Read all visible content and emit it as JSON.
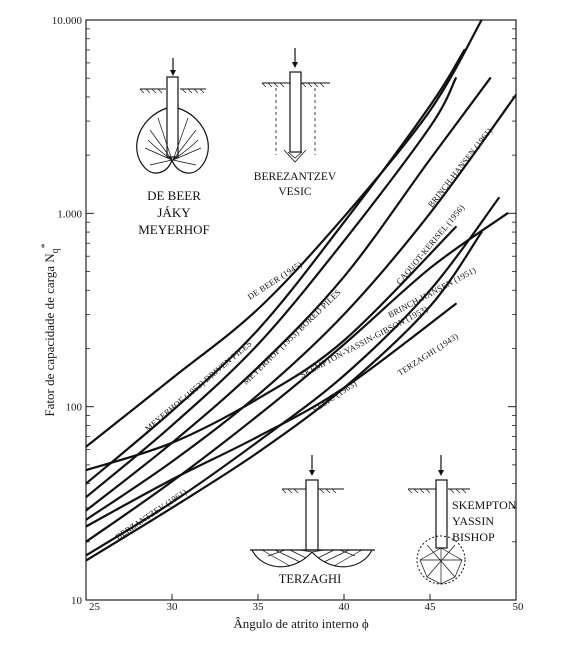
{
  "chart_data": {
    "type": "line",
    "title": "",
    "xlabel": "Ângulo de atrito interno ϕ",
    "ylabel": "Fator de capacidade de carga N",
    "ylabel_sub": "q",
    "ylabel_sup": "*",
    "xlim": [
      25,
      50
    ],
    "ylim": [
      10,
      10000
    ],
    "yscale": "log",
    "grid": false,
    "x_ticks": [
      "25",
      "30",
      "35",
      "40",
      "45",
      "50"
    ],
    "y_ticks": [
      {
        "value": 10,
        "label": "10"
      },
      {
        "value": 100,
        "label": "100"
      },
      {
        "value": 1000,
        "label": "1.000"
      },
      {
        "value": 10000,
        "label": "10.000"
      }
    ],
    "series": [
      {
        "name": "DE BEER (1945)",
        "x": [
          25,
          30,
          35,
          40,
          45,
          48
        ],
        "y": [
          62,
          140,
          320,
          960,
          3400,
          10000
        ]
      },
      {
        "name": "MEYERHOF (1953) DRIVEN PILES",
        "x": [
          25,
          30,
          35,
          40,
          45,
          47
        ],
        "y": [
          40,
          95,
          250,
          900,
          3600,
          7000
        ]
      },
      {
        "name": "MEYERHOF (1953) BORED PILES",
        "x": [
          25,
          30,
          35,
          40,
          45,
          46.5
        ],
        "y": [
          34,
          80,
          210,
          720,
          2800,
          5000
        ]
      },
      {
        "name": "SKEMPTON-YASSIN-GIBSON (1953)",
        "x": [
          25,
          30,
          35,
          40,
          46.5
        ],
        "y": [
          47,
          65,
          110,
          220,
          850
        ]
      },
      {
        "name": "BRINCH-HANSEN (1961)",
        "x": [
          25,
          30,
          35,
          40,
          45,
          48.5
        ],
        "y": [
          29,
          65,
          160,
          470,
          1900,
          5000
        ]
      },
      {
        "name": "CAQUOT-KERISEL (1956)",
        "x": [
          25,
          30,
          35,
          40,
          45,
          50
        ],
        "y": [
          26,
          52,
          115,
          300,
          1000,
          4100
        ]
      },
      {
        "name": "BRINCH-HANSEN (1951)",
        "x": [
          25,
          30,
          35,
          40,
          45,
          49.5
        ],
        "y": [
          20,
          41,
          90,
          210,
          520,
          1000
        ]
      },
      {
        "name": "BERZANTZEV (1961)",
        "x": [
          25,
          30,
          35,
          40,
          45,
          49
        ],
        "y": [
          17,
          32,
          66,
          145,
          400,
          1200
        ]
      },
      {
        "name": "VESIC (1963)",
        "x": [
          25,
          30,
          35,
          40,
          45,
          48
        ],
        "y": [
          16,
          30,
          58,
          125,
          330,
          800
        ]
      },
      {
        "name": "TERZAGHI (1943)",
        "x": [
          25,
          30,
          35,
          40,
          46.5
        ],
        "y": [
          24,
          42,
          70,
          125,
          340
        ]
      }
    ]
  },
  "insets": {
    "de_beer": [
      "DE BEER",
      "JÁKY",
      "MEYERHOF"
    ],
    "berezantzev": [
      "BEREZANTZEV",
      "VESIC"
    ],
    "terzaghi": [
      "TERZAGHI"
    ],
    "skempton": [
      "SKEMPTON",
      "YASSIN",
      "BISHOP"
    ]
  }
}
